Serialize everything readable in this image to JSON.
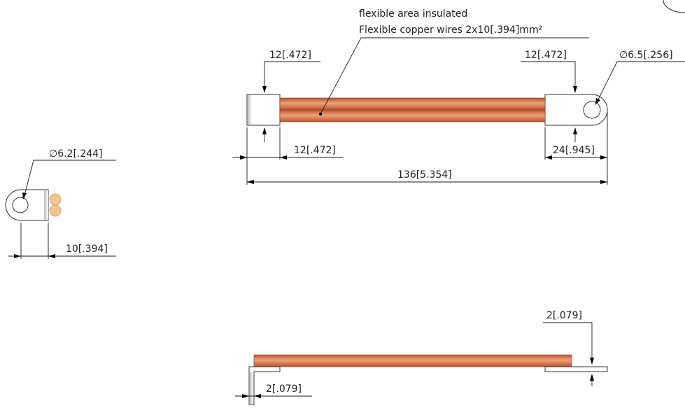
{
  "notes": {
    "line1": "flexible area insulated",
    "line2": "Flexible copper wires 2x10[.394]mm²"
  },
  "dimensions": {
    "left_lug_top": "12[.472]",
    "right_lug_top": "12[.472]",
    "hole_right": "6.5[.256]",
    "left_lug_bottom": "12[.472]",
    "right_lug_bottom": "24[.945]",
    "overall_length": "136[5.354]",
    "hole_side": "6.2[.244]",
    "side_width": "10[.394]",
    "thickness_right": "2[.079]",
    "thickness_left": "2[.079]"
  },
  "symbols": {
    "diameter": "∅"
  },
  "colors": {
    "copper_mid": "#e8926a",
    "copper_dark": "#b8552e",
    "copper_light": "#f6c0a0",
    "wire_end": "#f4c48e"
  }
}
